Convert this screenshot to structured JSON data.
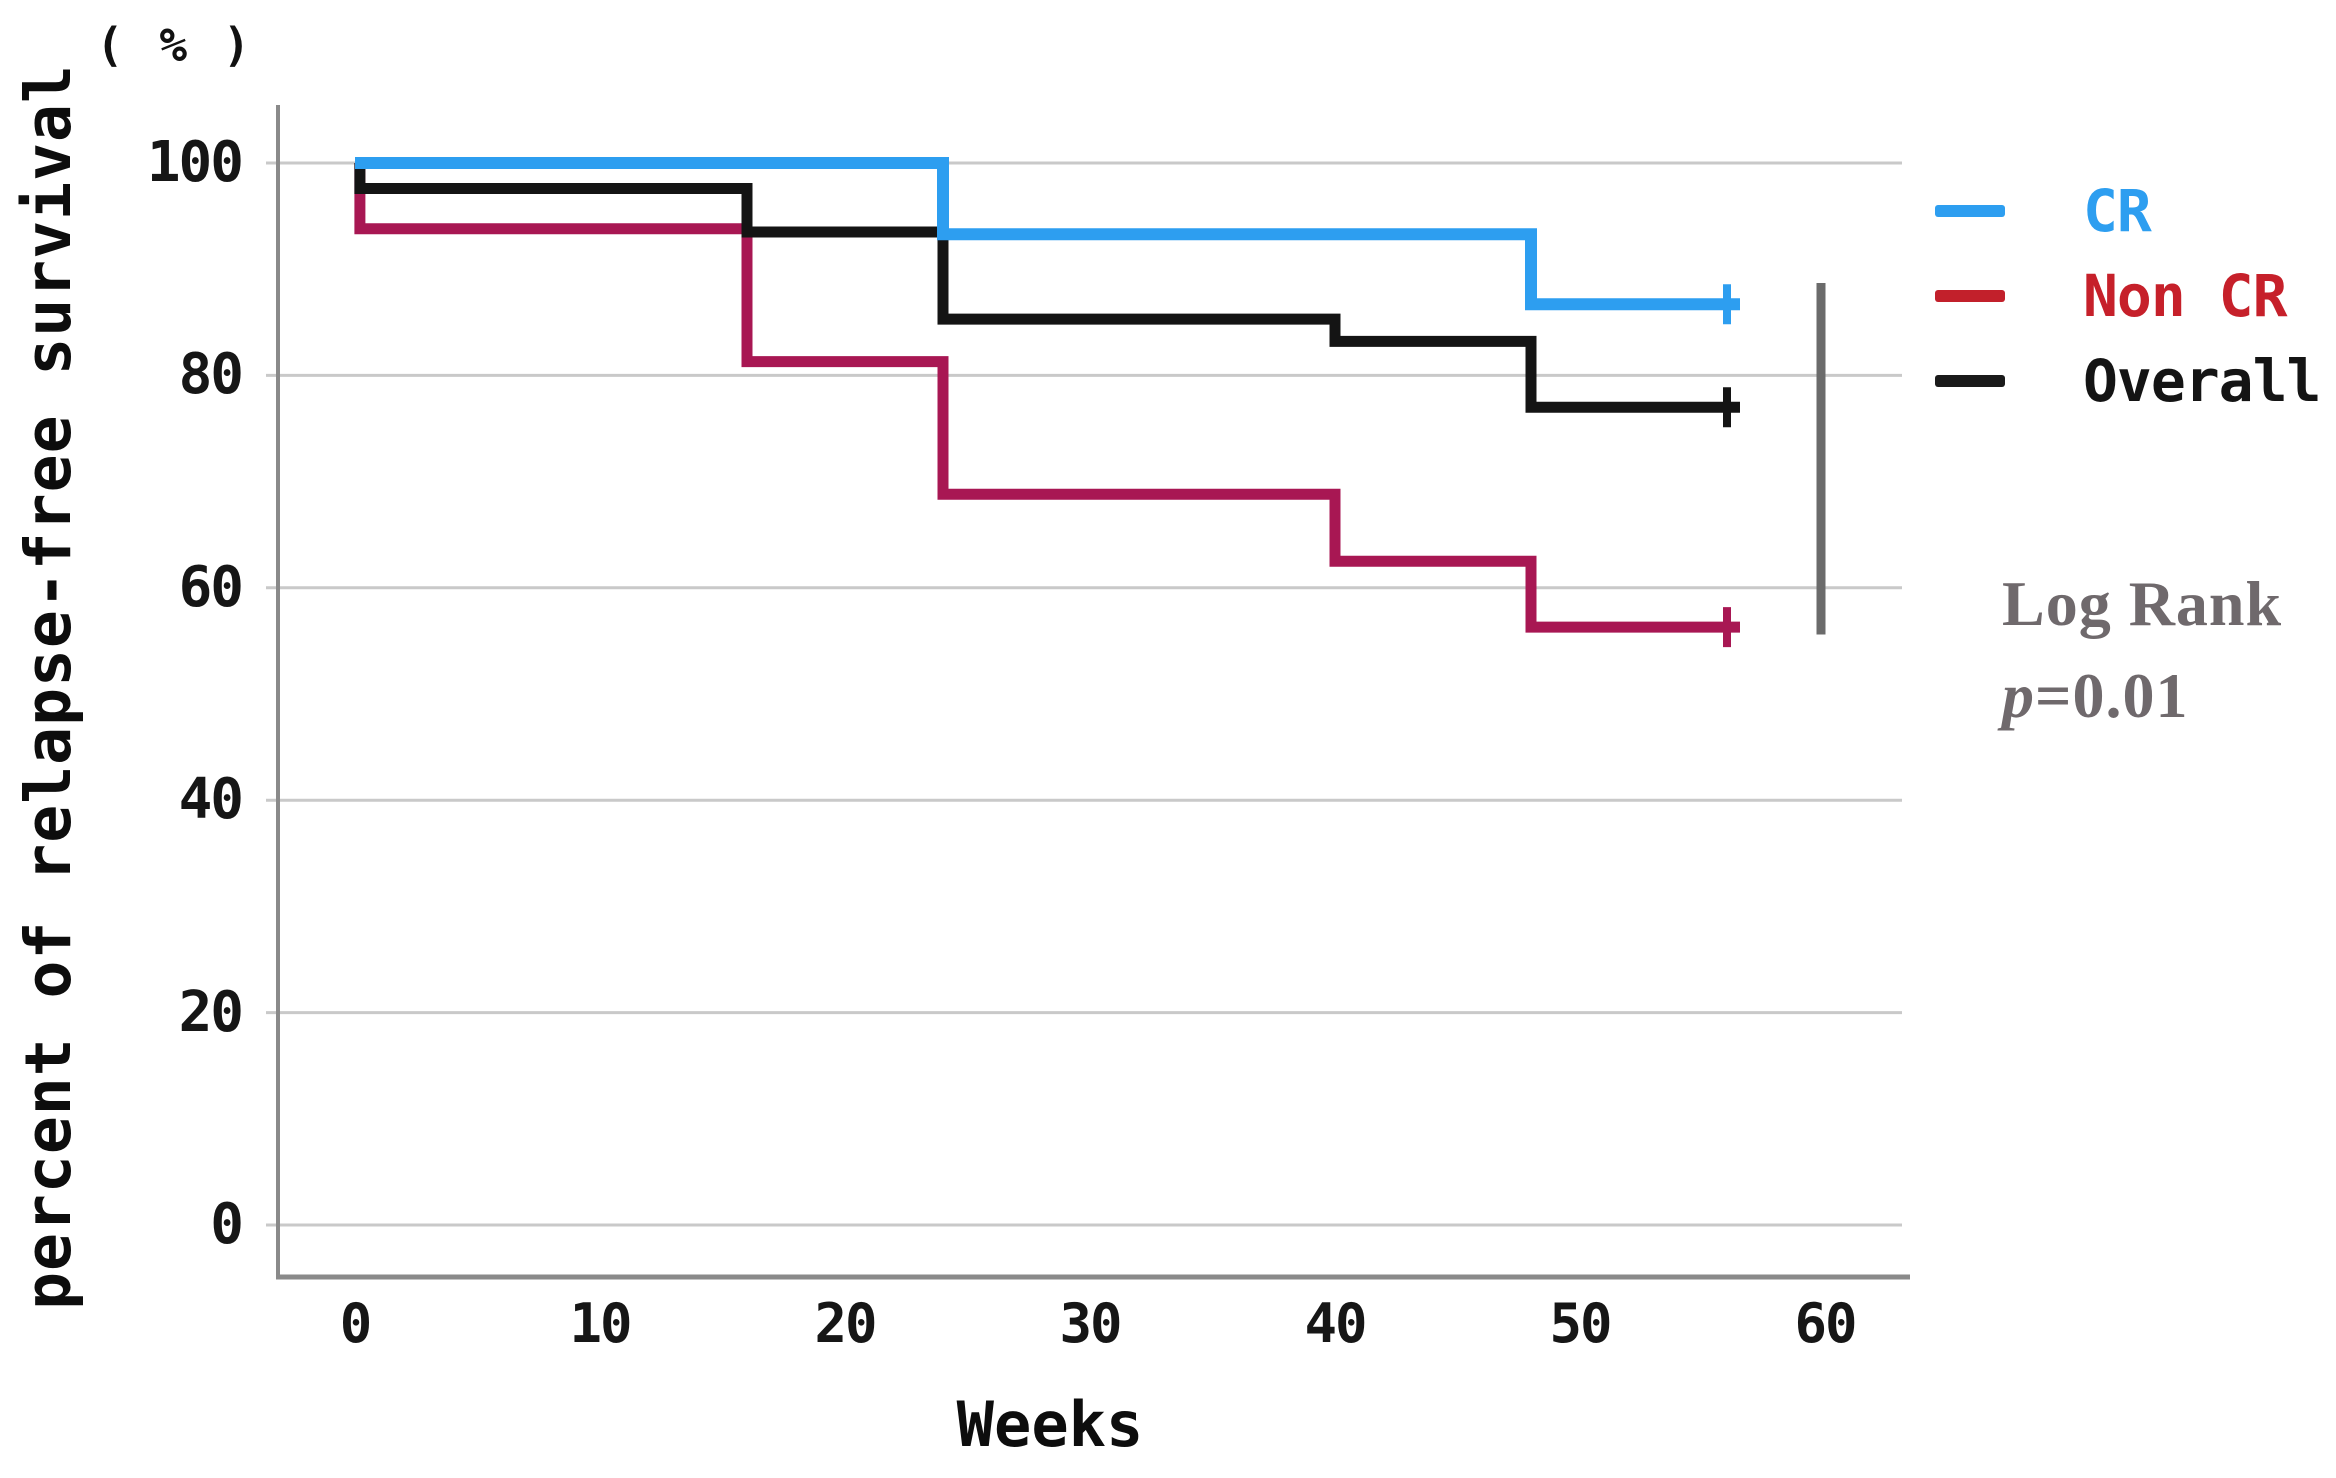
{
  "figure": {
    "y_axis_unit": "( % )",
    "y_axis_title": "percent of relapse-free survival",
    "x_axis_title": "Weeks",
    "stats_line1": "Log Rank",
    "stats_p_italic": "p",
    "stats_p_rest": "=0.01"
  },
  "legend": [
    {
      "label": "CR",
      "color": "#2d9ef0",
      "text_color": "#2d9ef0"
    },
    {
      "label": "Non CR",
      "color": "#c2202b",
      "text_color": "#c6202a"
    },
    {
      "label": "Overall",
      "color": "#1a1a1a",
      "text_color": "#141414"
    }
  ],
  "chart_data": {
    "type": "line",
    "subtype": "kaplan-meier-step",
    "title": "",
    "xlabel": "Weeks",
    "ylabel": "percent of relapse-free survival (%)",
    "xlim": [
      0,
      63
    ],
    "ylim": [
      0,
      100
    ],
    "grid": true,
    "legend_position": "right",
    "x_ticks": [
      0,
      10,
      20,
      30,
      40,
      50,
      60
    ],
    "y_ticks": [
      0,
      20,
      40,
      60,
      80,
      100
    ],
    "series": [
      {
        "name": "Non CR",
        "color": "#a81753",
        "stroke_width": 11,
        "censor_week": 56,
        "points": [
          [
            0,
            100
          ],
          [
            0.2,
            100
          ],
          [
            0.2,
            93.8
          ],
          [
            16,
            93.8
          ],
          [
            16,
            81.3
          ],
          [
            24,
            81.3
          ],
          [
            24,
            68.8
          ],
          [
            40,
            68.8
          ],
          [
            40,
            62.5
          ],
          [
            48,
            62.5
          ],
          [
            48,
            56.3
          ],
          [
            56,
            56.3
          ]
        ]
      },
      {
        "name": "Overall",
        "color": "#141414",
        "stroke_width": 11,
        "censor_week": 56,
        "points": [
          [
            0,
            100
          ],
          [
            0.2,
            100
          ],
          [
            0.2,
            97.6
          ],
          [
            16,
            97.6
          ],
          [
            16,
            93.5
          ],
          [
            24,
            93.5
          ],
          [
            24,
            85.3
          ],
          [
            40,
            85.3
          ],
          [
            40,
            83.2
          ],
          [
            48,
            83.2
          ],
          [
            48,
            77
          ],
          [
            56,
            77
          ]
        ]
      },
      {
        "name": "CR",
        "color": "#2d9ef0",
        "stroke_width": 12,
        "censor_week": 56,
        "points": [
          [
            0,
            100
          ],
          [
            24,
            100
          ],
          [
            24,
            93.3
          ],
          [
            48,
            93.3
          ],
          [
            48,
            86.7
          ],
          [
            56,
            86.7
          ]
        ]
      }
    ],
    "annotations": {
      "log_rank_text": "Log Rank p=0.01",
      "comparison_bar": {
        "x_week": 60,
        "p_top": 88.7,
        "p_bottom": 55.6,
        "color": "#6b6b6b"
      }
    },
    "colors": {
      "gridline": "#c9c9c9",
      "axis": "#8a8a8a",
      "annotation_gray": "#6f696c"
    }
  }
}
